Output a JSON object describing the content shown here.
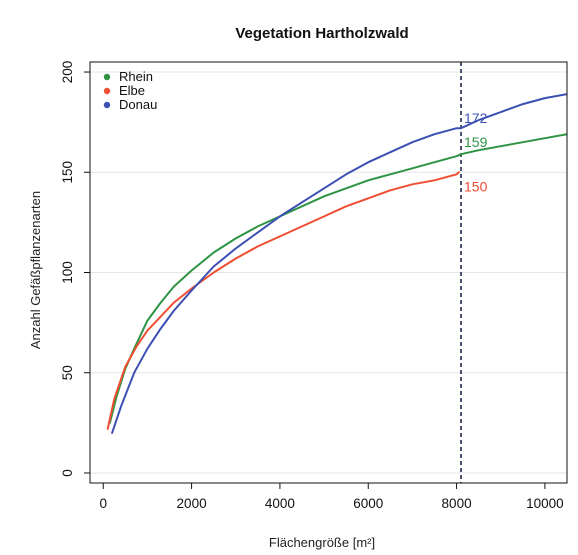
{
  "chart_data": {
    "type": "line",
    "title": "Vegetation Hartholzwald",
    "xlabel": "Flächengröße [m²]",
    "ylabel": "Anzahl Gefäßpflanzenarten",
    "xlim": [
      -300,
      10500
    ],
    "ylim": [
      -5,
      205
    ],
    "xticks": [
      0,
      2000,
      4000,
      6000,
      8000,
      10000
    ],
    "yticks": [
      0,
      50,
      100,
      150,
      200
    ],
    "grid": "horizontal",
    "legend_position": "top-left",
    "reference_line_x": 8100,
    "colors": {
      "Rhein": "#2e9444",
      "Elbe": "#f04e32",
      "Donau": "#3c50b4"
    },
    "series": [
      {
        "name": "Rhein",
        "end_label": "159",
        "end_label_x": 8100,
        "end_label_y": 165,
        "points": [
          [
            150,
            25
          ],
          [
            300,
            38
          ],
          [
            500,
            52
          ],
          [
            700,
            62
          ],
          [
            1000,
            76
          ],
          [
            1300,
            85
          ],
          [
            1600,
            93
          ],
          [
            2000,
            101
          ],
          [
            2500,
            110
          ],
          [
            3000,
            117
          ],
          [
            3500,
            123
          ],
          [
            4000,
            128
          ],
          [
            4500,
            133
          ],
          [
            5000,
            138
          ],
          [
            5500,
            142
          ],
          [
            6000,
            146
          ],
          [
            6500,
            149
          ],
          [
            7000,
            152
          ],
          [
            7500,
            155
          ],
          [
            8000,
            158
          ],
          [
            8100,
            159
          ],
          [
            8500,
            161
          ],
          [
            9000,
            163
          ],
          [
            9500,
            165
          ],
          [
            10000,
            167
          ],
          [
            10500,
            169
          ]
        ]
      },
      {
        "name": "Elbe",
        "end_label": "150",
        "end_label_x": 8100,
        "end_label_y": 143,
        "points": [
          [
            100,
            22
          ],
          [
            250,
            37
          ],
          [
            500,
            53
          ],
          [
            750,
            63
          ],
          [
            1000,
            71
          ],
          [
            1300,
            78
          ],
          [
            1600,
            85
          ],
          [
            2000,
            92
          ],
          [
            2500,
            100
          ],
          [
            3000,
            107
          ],
          [
            3500,
            113
          ],
          [
            4000,
            118
          ],
          [
            4500,
            123
          ],
          [
            5000,
            128
          ],
          [
            5500,
            133
          ],
          [
            6000,
            137
          ],
          [
            6500,
            141
          ],
          [
            7000,
            144
          ],
          [
            7500,
            146
          ],
          [
            8000,
            149
          ],
          [
            8050,
            150
          ]
        ]
      },
      {
        "name": "Donau",
        "end_label": "172",
        "end_label_x": 8100,
        "end_label_y": 177,
        "points": [
          [
            200,
            20
          ],
          [
            400,
            33
          ],
          [
            700,
            50
          ],
          [
            1000,
            62
          ],
          [
            1300,
            72
          ],
          [
            1600,
            81
          ],
          [
            2000,
            91
          ],
          [
            2500,
            103
          ],
          [
            3000,
            112
          ],
          [
            3500,
            120
          ],
          [
            4000,
            128
          ],
          [
            4500,
            135
          ],
          [
            5000,
            142
          ],
          [
            5500,
            149
          ],
          [
            6000,
            155
          ],
          [
            6500,
            160
          ],
          [
            7000,
            165
          ],
          [
            7500,
            169
          ],
          [
            8000,
            172
          ],
          [
            8100,
            172
          ],
          [
            8500,
            176
          ],
          [
            9000,
            180
          ],
          [
            9500,
            184
          ],
          [
            10000,
            187
          ],
          [
            10500,
            189
          ]
        ]
      }
    ]
  }
}
